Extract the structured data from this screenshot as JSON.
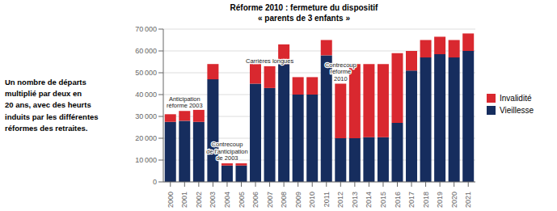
{
  "chart_data": {
    "type": "bar",
    "stacked": true,
    "title": "Réforme 2010 : fermeture du dispositif\n« parents de 3 enfants »",
    "categories": [
      "2000",
      "2001",
      "2002",
      "2003",
      "2004",
      "2005",
      "2006",
      "2007",
      "2008",
      "2009",
      "2010",
      "2011",
      "2012",
      "2013",
      "2014",
      "2015",
      "2016",
      "2017",
      "2018",
      "2019",
      "2020",
      "2021"
    ],
    "series": [
      {
        "name": "Vieillesse",
        "color": "#162d5e",
        "values": [
          27500,
          28000,
          27500,
          47000,
          7500,
          7500,
          45000,
          43000,
          54000,
          40000,
          40000,
          58000,
          20000,
          20000,
          20500,
          20500,
          27000,
          51000,
          57000,
          58500,
          57000,
          60000
        ]
      },
      {
        "name": "Invalidité",
        "color": "#d9282f",
        "values": [
          3500,
          4500,
          5500,
          7000,
          1000,
          1000,
          9000,
          10000,
          9000,
          8000,
          8000,
          7000,
          25000,
          34000,
          33500,
          33500,
          32000,
          9000,
          8000,
          8000,
          8000,
          8000
        ]
      }
    ],
    "ylim": [
      0,
      70000
    ],
    "yticks": [
      0,
      {
        "value": 10000,
        "label": "10 000"
      },
      {
        "value": 20000,
        "label": "20 000"
      },
      {
        "value": 30000,
        "label": "30 000"
      },
      {
        "value": 40000,
        "label": "40 000"
      },
      {
        "value": 50000,
        "label": "50 000"
      },
      {
        "value": 60000,
        "label": "60 000"
      },
      {
        "value": 70000,
        "label": "70 000"
      }
    ],
    "grid": true,
    "legend": "right",
    "annotations": [
      {
        "text": "Un nombre de départs\nmultiplié par deux en\n20 ans, avec des heurts\ninduits par les différentes\nréformes des retraites."
      },
      {
        "text": "Anticipation\nréforme 2003",
        "x": "2001"
      },
      {
        "text": "Contrecoup\nde l'anticipation\nde 2003",
        "x": "2004"
      },
      {
        "text": "Carrières longues",
        "x": "2007"
      },
      {
        "text": "Contrecoup\nréforme\n2010",
        "x": "2012"
      }
    ]
  }
}
